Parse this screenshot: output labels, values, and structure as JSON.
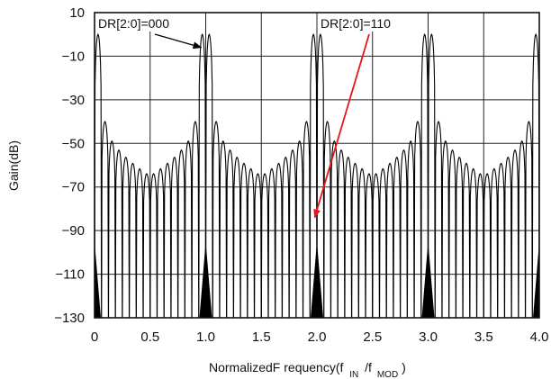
{
  "chart_data": {
    "type": "line",
    "xlabel": {
      "main": "NormalizedF requency(f",
      "sub1": "IN",
      "slash": "/f",
      "sub2": "MOD",
      "close": ")"
    },
    "ylabel": "Gain(dB)",
    "xlim": [
      0,
      4.0
    ],
    "ylim": [
      -130,
      10
    ],
    "xticks": [
      0,
      0.5,
      1.0,
      1.5,
      2.0,
      2.5,
      3.0,
      3.5,
      4.0
    ],
    "xtick_labels": [
      "0",
      "0.5",
      "1.0",
      "1.5",
      "2.0",
      "2.5",
      "3.0",
      "3.5",
      "4.0"
    ],
    "yticks": [
      10,
      -10,
      -30,
      -50,
      -70,
      -90,
      -110,
      -130
    ],
    "ytick_labels": [
      "10",
      "−10",
      "−30",
      "−50",
      "−70",
      "−90",
      "−110",
      "−130"
    ],
    "grid": true,
    "series": [
      {
        "name": "DR[2:0]=000",
        "color": "#000000",
        "main_lobe_centers": [
          0,
          1.0,
          2.0,
          3.0,
          4.0
        ],
        "main_lobe_peak": 0,
        "first_sidelobe_peak": -40,
        "mid_sidelobe_peak": -65,
        "null_floor": -130,
        "lobes_per_period": 16
      }
    ],
    "annotations": [
      {
        "text": "DR[2:0]=000",
        "arrow_color": "#000000",
        "target_x": 0.96,
        "target_y": -6
      },
      {
        "text": "DR[2:0]=110",
        "arrow_color": "#e8141b",
        "target_x": 1.98,
        "target_y": -84
      }
    ]
  }
}
